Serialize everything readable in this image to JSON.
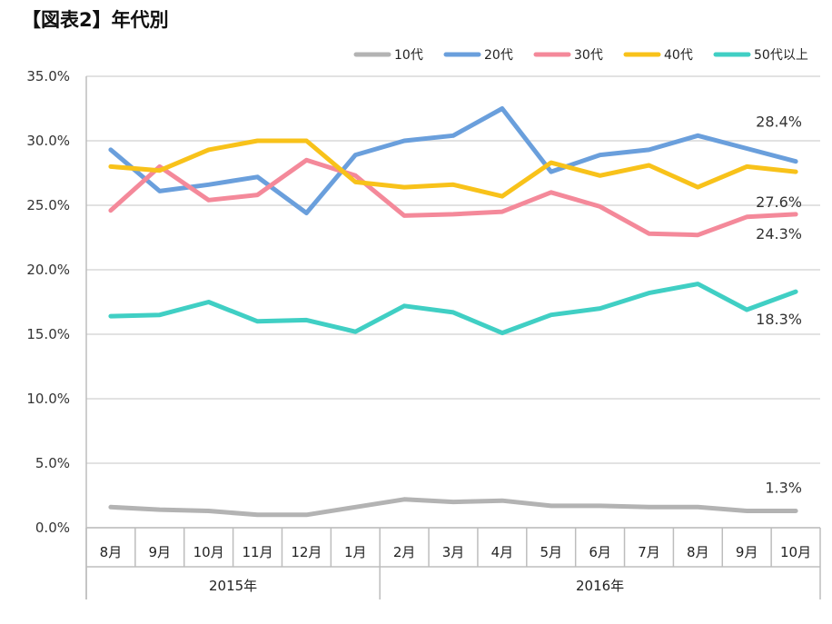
{
  "chart_data": {
    "type": "line",
    "title": "【図表2】年代別",
    "categories": [
      "8月",
      "9月",
      "10月",
      "11月",
      "12月",
      "1月",
      "2月",
      "3月",
      "4月",
      "5月",
      "6月",
      "7月",
      "8月",
      "9月",
      "10月"
    ],
    "year_groups": [
      {
        "label": "2015年",
        "start": 0,
        "end": 5
      },
      {
        "label": "2016年",
        "start": 6,
        "end": 14
      }
    ],
    "ylim": [
      0,
      35
    ],
    "yticks": [
      0,
      5,
      10,
      15,
      20,
      25,
      30,
      35
    ],
    "ytick_labels": [
      "0.0%",
      "5.0%",
      "10.0%",
      "15.0%",
      "20.0%",
      "25.0%",
      "30.0%",
      "35.0%"
    ],
    "grid": true,
    "legend_position": "top-right",
    "series": [
      {
        "name": "10代",
        "color": "#b3b3b3",
        "end_label": "1.3%",
        "values": [
          1.6,
          1.4,
          1.3,
          1.0,
          1.0,
          1.6,
          2.2,
          2.0,
          2.1,
          1.7,
          1.7,
          1.6,
          1.6,
          1.3,
          1.3
        ]
      },
      {
        "name": "20代",
        "color": "#6a9fdc",
        "end_label": "28.4%",
        "values": [
          29.3,
          26.1,
          26.6,
          27.2,
          24.4,
          28.9,
          30.0,
          30.4,
          32.5,
          27.6,
          28.9,
          29.3,
          30.4,
          29.4,
          28.4
        ]
      },
      {
        "name": "30代",
        "color": "#f4899a",
        "end_label": "24.3%",
        "values": [
          24.6,
          28.0,
          25.4,
          25.8,
          28.5,
          27.3,
          24.2,
          24.3,
          24.5,
          26.0,
          24.9,
          22.8,
          22.7,
          24.1,
          24.3
        ]
      },
      {
        "name": "40代",
        "color": "#f8c21a",
        "end_label": "27.6%",
        "values": [
          28.0,
          27.7,
          29.3,
          30.0,
          30.0,
          26.8,
          26.4,
          26.6,
          25.7,
          28.3,
          27.3,
          28.1,
          26.4,
          28.0,
          27.6
        ]
      },
      {
        "name": "50代以上",
        "color": "#40cfc4",
        "end_label": "18.3%",
        "values": [
          16.4,
          16.5,
          17.5,
          16.0,
          16.1,
          15.2,
          17.2,
          16.7,
          15.1,
          16.5,
          17.0,
          18.2,
          18.9,
          16.9,
          18.3
        ]
      }
    ]
  }
}
